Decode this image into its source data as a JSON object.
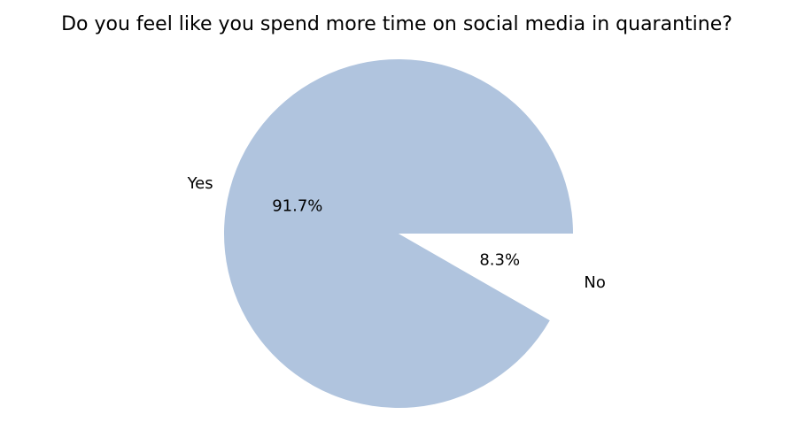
{
  "chart_data": {
    "type": "pie",
    "title": "Do you feel like you spend more time on social media in quarantine?",
    "categories": [
      "Yes",
      "No"
    ],
    "values": [
      91.7,
      8.3
    ],
    "value_labels": [
      "91.7%",
      "8.3%"
    ],
    "colors": [
      "#b0c4de",
      "#ffffff"
    ],
    "start_angle_deg": 0,
    "direction": "counterclockwise"
  }
}
